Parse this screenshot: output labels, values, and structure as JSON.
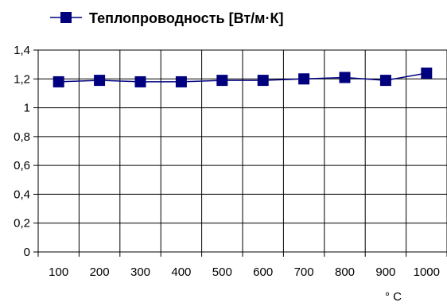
{
  "chart_data": {
    "type": "line",
    "categories": [
      "100",
      "200",
      "300",
      "400",
      "500",
      "600",
      "700",
      "800",
      "900",
      "1000"
    ],
    "series": [
      {
        "name": "Теплопроводность [Вт/м·К]",
        "values": [
          1.18,
          1.19,
          1.18,
          1.18,
          1.19,
          1.19,
          1.2,
          1.21,
          1.19,
          1.24
        ],
        "color": "#00007f"
      }
    ],
    "y_tick_labels": [
      "0",
      "0,2",
      "0,4",
      "0,6",
      "0,8",
      "1",
      "1,2",
      "1,4"
    ],
    "ylim": [
      0,
      1.4
    ],
    "x_unit_label": "° C",
    "legend_position": "top",
    "grid": true,
    "marker": "square"
  }
}
